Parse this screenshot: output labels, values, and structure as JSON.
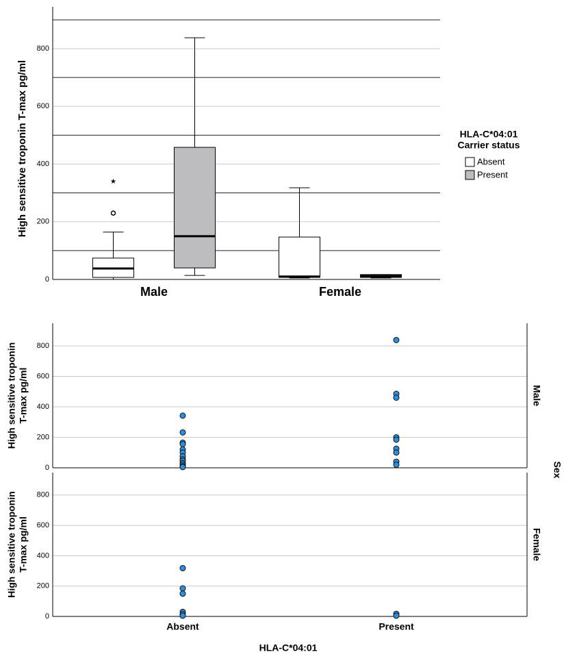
{
  "chart_data": [
    {
      "type": "box",
      "y_label": "High sensitive troponin T-max pg/ml",
      "categories": [
        "Male",
        "Female"
      ],
      "ylim": [
        0,
        945
      ],
      "yticks": [
        0,
        200,
        400,
        600,
        800
      ],
      "reference_lines": [
        100,
        300,
        500,
        700,
        900
      ],
      "grid": true,
      "legend_title": [
        "HLA-C*04:01",
        "Carrier status"
      ],
      "legend_position": "right",
      "series": [
        {
          "name": "Absent",
          "color": "#ffffff",
          "values": [
            {
              "min": 0,
              "q1": 7,
              "median": 38,
              "q3": 74,
              "max": 164
            },
            {
              "min": 5,
              "q1": 7,
              "median": 10,
              "q3": 147,
              "max": 318
            }
          ],
          "outliers": [
            [
              {
                "value": 230,
                "symbol": "circle"
              },
              {
                "value": 340,
                "symbol": "star"
              }
            ],
            []
          ]
        },
        {
          "name": "Present",
          "color": "#bdbdbf",
          "values": [
            {
              "min": 14,
              "q1": 40,
              "median": 150,
              "q3": 458,
              "max": 838
            },
            {
              "min": 5,
              "q1": 7,
              "median": 12,
              "q3": 17,
              "max": 17
            }
          ],
          "outliers": [
            [],
            []
          ]
        }
      ]
    },
    {
      "type": "dot",
      "y_label_lines": [
        "High sensitive troponin",
        "T-max pg/ml"
      ],
      "x_label": "HLA-C*04:01",
      "facet_title": "Sex",
      "categories": [
        "Absent",
        "Present"
      ],
      "ylim": [
        0,
        948
      ],
      "yticks": [
        0,
        200,
        400,
        600,
        800
      ],
      "grid": true,
      "color": "#2b8fde",
      "facets": [
        {
          "name": "Male",
          "values": [
            [
              342,
              232,
              165,
              155,
              120,
              100,
              75,
              55,
              45,
              30,
              20,
              10,
              5
            ],
            [
              838,
              485,
              460,
              200,
              185,
              125,
              100,
              40,
              20
            ]
          ]
        },
        {
          "name": "Female",
          "values": [
            [
              318,
              185,
              150,
              30,
              15,
              5
            ],
            [
              17,
              5
            ]
          ]
        }
      ]
    }
  ]
}
